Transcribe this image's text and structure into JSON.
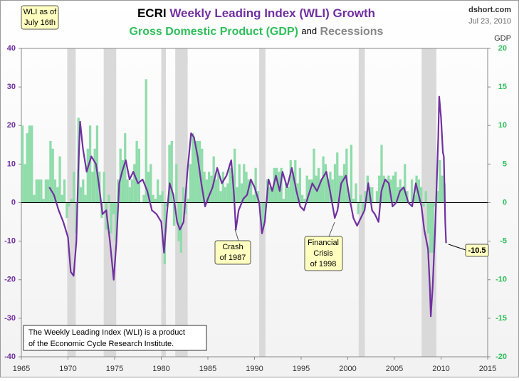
{
  "chart_data": {
    "type": "bar-line",
    "title_parts": [
      "ECRI",
      "Weekly Leading Index (WLI) Growth"
    ],
    "subtitle_parts": [
      "Gross Domestic Product (GDP)",
      "and",
      "Recessions"
    ],
    "source": "dshort.com",
    "date": "Jul 23, 2010",
    "y2_label": "GDP",
    "as_of": [
      "WLI as of",
      "July 16th"
    ],
    "note": [
      "The Weekly Leading Index (WLI) is a product",
      "of the Economic Cycle Research Institute."
    ],
    "annotations": [
      {
        "lines": [
          "Crash",
          "of 1987"
        ]
      },
      {
        "lines": [
          "Financial",
          "Crisis",
          "of 1998"
        ]
      }
    ],
    "xlim": [
      1965,
      2015
    ],
    "xticks": [
      1965,
      1970,
      1975,
      1980,
      1985,
      1990,
      1995,
      2000,
      2005,
      2010,
      2015
    ],
    "ylim": [
      -40,
      40
    ],
    "yticks": [
      -40,
      -30,
      -20,
      -10,
      0,
      10,
      20,
      30,
      40
    ],
    "y2lim": [
      -20,
      20
    ],
    "y2ticks": [
      -20,
      -15,
      -10,
      -5,
      0,
      5,
      10,
      15,
      20
    ],
    "recession_color": "#d9d9d9",
    "recessions": [
      [
        1969.92,
        1970.83
      ],
      [
        1973.83,
        1975.17
      ],
      [
        1980.0,
        1980.5
      ],
      [
        1981.5,
        1982.83
      ],
      [
        1990.5,
        1991.17
      ],
      [
        2001.17,
        2001.83
      ],
      [
        2007.92,
        2009.5
      ]
    ],
    "series": [
      {
        "name": "Gross Domestic Product (GDP)",
        "color": "#8fdcaa",
        "axis": "y2",
        "x": [
          1965,
          1965.25,
          1965.5,
          1965.75,
          1966,
          1966.25,
          1966.5,
          1966.75,
          1967,
          1967.25,
          1967.5,
          1967.75,
          1968,
          1968.25,
          1968.5,
          1968.75,
          1969,
          1969.25,
          1969.5,
          1969.75,
          1970,
          1970.25,
          1970.5,
          1970.75,
          1971,
          1971.25,
          1971.5,
          1971.75,
          1972,
          1972.25,
          1972.5,
          1972.75,
          1973,
          1973.25,
          1973.5,
          1973.75,
          1974,
          1974.25,
          1974.5,
          1974.75,
          1975,
          1975.25,
          1975.5,
          1975.75,
          1976,
          1976.25,
          1976.5,
          1976.75,
          1977,
          1977.25,
          1977.5,
          1977.75,
          1978,
          1978.25,
          1978.5,
          1978.75,
          1979,
          1979.25,
          1979.5,
          1979.75,
          1980,
          1980.25,
          1980.5,
          1980.75,
          1981,
          1981.25,
          1981.5,
          1981.75,
          1982,
          1982.25,
          1982.5,
          1982.75,
          1983,
          1983.25,
          1983.5,
          1983.75,
          1984,
          1984.25,
          1984.5,
          1984.75,
          1985,
          1985.25,
          1985.5,
          1985.75,
          1986,
          1986.25,
          1986.5,
          1986.75,
          1987,
          1987.25,
          1987.5,
          1987.75,
          1988,
          1988.25,
          1988.5,
          1988.75,
          1989,
          1989.25,
          1989.5,
          1989.75,
          1990,
          1990.25,
          1990.5,
          1990.75,
          1991,
          1991.25,
          1991.5,
          1991.75,
          1992,
          1992.25,
          1992.5,
          1992.75,
          1993,
          1993.25,
          1993.5,
          1993.75,
          1994,
          1994.25,
          1994.5,
          1994.75,
          1995,
          1995.25,
          1995.5,
          1995.75,
          1996,
          1996.25,
          1996.5,
          1996.75,
          1997,
          1997.25,
          1997.5,
          1997.75,
          1998,
          1998.25,
          1998.5,
          1998.75,
          1999,
          1999.25,
          1999.5,
          1999.75,
          2000,
          2000.25,
          2000.5,
          2000.75,
          2001,
          2001.25,
          2001.5,
          2001.75,
          2002,
          2002.25,
          2002.5,
          2002.75,
          2003,
          2003.25,
          2003.5,
          2003.75,
          2004,
          2004.25,
          2004.5,
          2004.75,
          2005,
          2005.25,
          2005.5,
          2005.75,
          2006,
          2006.25,
          2006.5,
          2006.75,
          2007,
          2007.25,
          2007.5,
          2007.75,
          2008,
          2008.25,
          2008.5,
          2008.75,
          2009,
          2009.25,
          2009.5,
          2009.75,
          2010,
          2010.25
        ],
        "values": [
          10,
          5,
          9,
          10,
          10,
          1,
          3,
          3,
          3,
          0.5,
          3,
          3,
          8,
          7,
          3,
          2,
          6,
          1,
          3,
          -2,
          -0.5,
          0.5,
          4,
          -4,
          11,
          2,
          3,
          1,
          7,
          10,
          4,
          7,
          10,
          4,
          -2,
          4,
          -3.5,
          1,
          -4,
          -1.5,
          -5,
          3,
          7,
          5.5,
          9,
          3,
          2,
          3,
          5,
          8,
          7,
          0,
          1,
          16,
          4,
          5,
          1,
          0.5,
          3,
          1,
          1.5,
          -8,
          -0.5,
          7.5,
          8,
          -3,
          5,
          -5,
          -6.5,
          2,
          -1.5,
          0.5,
          5,
          9,
          8,
          8,
          8,
          7,
          4,
          3,
          4,
          3.5,
          6,
          3,
          4,
          1.5,
          4,
          2,
          2.5,
          4.5,
          3.5,
          7,
          2,
          5,
          2.5,
          5,
          4,
          3,
          3,
          1,
          4.5,
          1.5,
          0,
          -3.5,
          -2,
          3,
          2,
          2,
          4.5,
          4.5,
          4,
          4.5,
          0.5,
          2.5,
          2,
          5.5,
          4,
          5.5,
          2.5,
          4.5,
          1,
          0.5,
          3.5,
          3,
          3,
          7,
          3.5,
          4.5,
          3,
          6,
          5,
          3,
          4,
          3,
          5,
          6.5,
          3.5,
          3.5,
          5,
          7,
          1,
          7.5,
          0.5,
          2.5,
          -1.5,
          1,
          -1.5,
          1.5,
          3.5,
          2,
          2,
          0,
          1.5,
          3.5,
          7.5,
          3.5,
          3,
          3.5,
          3,
          3.5,
          4,
          2,
          3,
          2,
          5,
          1.5,
          0,
          3,
          1,
          3.5,
          3,
          2,
          -0.5,
          1.5,
          -4,
          -6.5,
          -6.5,
          -0.5,
          1.5,
          5.5,
          3.5,
          2.5
        ]
      },
      {
        "name": "Weekly Leading Index (WLI) Growth",
        "color": "#7030a0",
        "axis": "y",
        "x": [
          1968.0,
          1968.5,
          1969.0,
          1969.5,
          1970.0,
          1970.3,
          1970.6,
          1970.9,
          1971.1,
          1971.3,
          1971.6,
          1972.0,
          1972.5,
          1973.0,
          1973.3,
          1973.7,
          1974.1,
          1974.5,
          1974.9,
          1975.2,
          1975.5,
          1975.8,
          1976.2,
          1976.6,
          1977.0,
          1977.5,
          1978.0,
          1978.5,
          1979.0,
          1979.5,
          1980.0,
          1980.3,
          1980.6,
          1980.9,
          1981.3,
          1981.7,
          1982.0,
          1982.4,
          1982.8,
          1983.2,
          1983.5,
          1983.9,
          1984.3,
          1984.7,
          1985.0,
          1985.5,
          1986.0,
          1986.5,
          1987.0,
          1987.5,
          1987.8,
          1988.0,
          1988.3,
          1988.8,
          1989.2,
          1989.6,
          1990.0,
          1990.5,
          1990.8,
          1991.1,
          1991.5,
          1991.9,
          1992.3,
          1992.7,
          1993.0,
          1993.5,
          1994.0,
          1994.5,
          1994.9,
          1995.3,
          1995.8,
          1996.2,
          1996.7,
          1997.2,
          1997.7,
          1998.1,
          1998.6,
          1998.9,
          1999.3,
          1999.8,
          2000.2,
          2000.6,
          2001.0,
          2001.4,
          2001.8,
          2002.2,
          2002.6,
          2002.9,
          2003.3,
          2003.6,
          2004.0,
          2004.4,
          2004.8,
          2005.2,
          2005.6,
          2006.0,
          2006.5,
          2006.9,
          2007.3,
          2007.6,
          2007.9,
          2008.2,
          2008.6,
          2008.8,
          2008.9,
          2009.1,
          2009.4,
          2009.7,
          2009.8,
          2010.0,
          2010.2,
          2010.3,
          2010.45,
          2010.54
        ],
        "values": [
          4,
          2,
          -2,
          -5,
          -9,
          -18,
          -19,
          -10,
          8,
          21,
          14,
          8,
          12,
          10,
          5,
          -3,
          -2,
          -10,
          -20,
          -10,
          5,
          8,
          11,
          6,
          8,
          5,
          6,
          3,
          -2,
          -3,
          -5,
          -13,
          -3,
          5,
          2,
          -5,
          -7,
          -5,
          8,
          18,
          17,
          12,
          5,
          -1,
          1,
          4,
          9,
          5,
          7,
          11,
          2,
          -7,
          -2,
          1,
          2,
          6,
          4,
          0,
          -8,
          -5,
          6,
          3,
          7,
          3,
          8,
          4,
          9,
          3,
          -1,
          -2,
          2,
          5,
          3,
          6,
          8,
          3,
          -4,
          -2,
          5,
          7,
          1,
          -4,
          -6,
          -4,
          -2,
          5,
          -2,
          -3,
          -5,
          3,
          6,
          5,
          -1,
          0,
          3,
          4,
          0,
          -1,
          5,
          2,
          -1,
          -7,
          -12,
          -22,
          -29.5,
          -22,
          -5,
          17,
          27.5,
          22,
          13,
          12,
          -5,
          -10.5
        ]
      }
    ]
  }
}
